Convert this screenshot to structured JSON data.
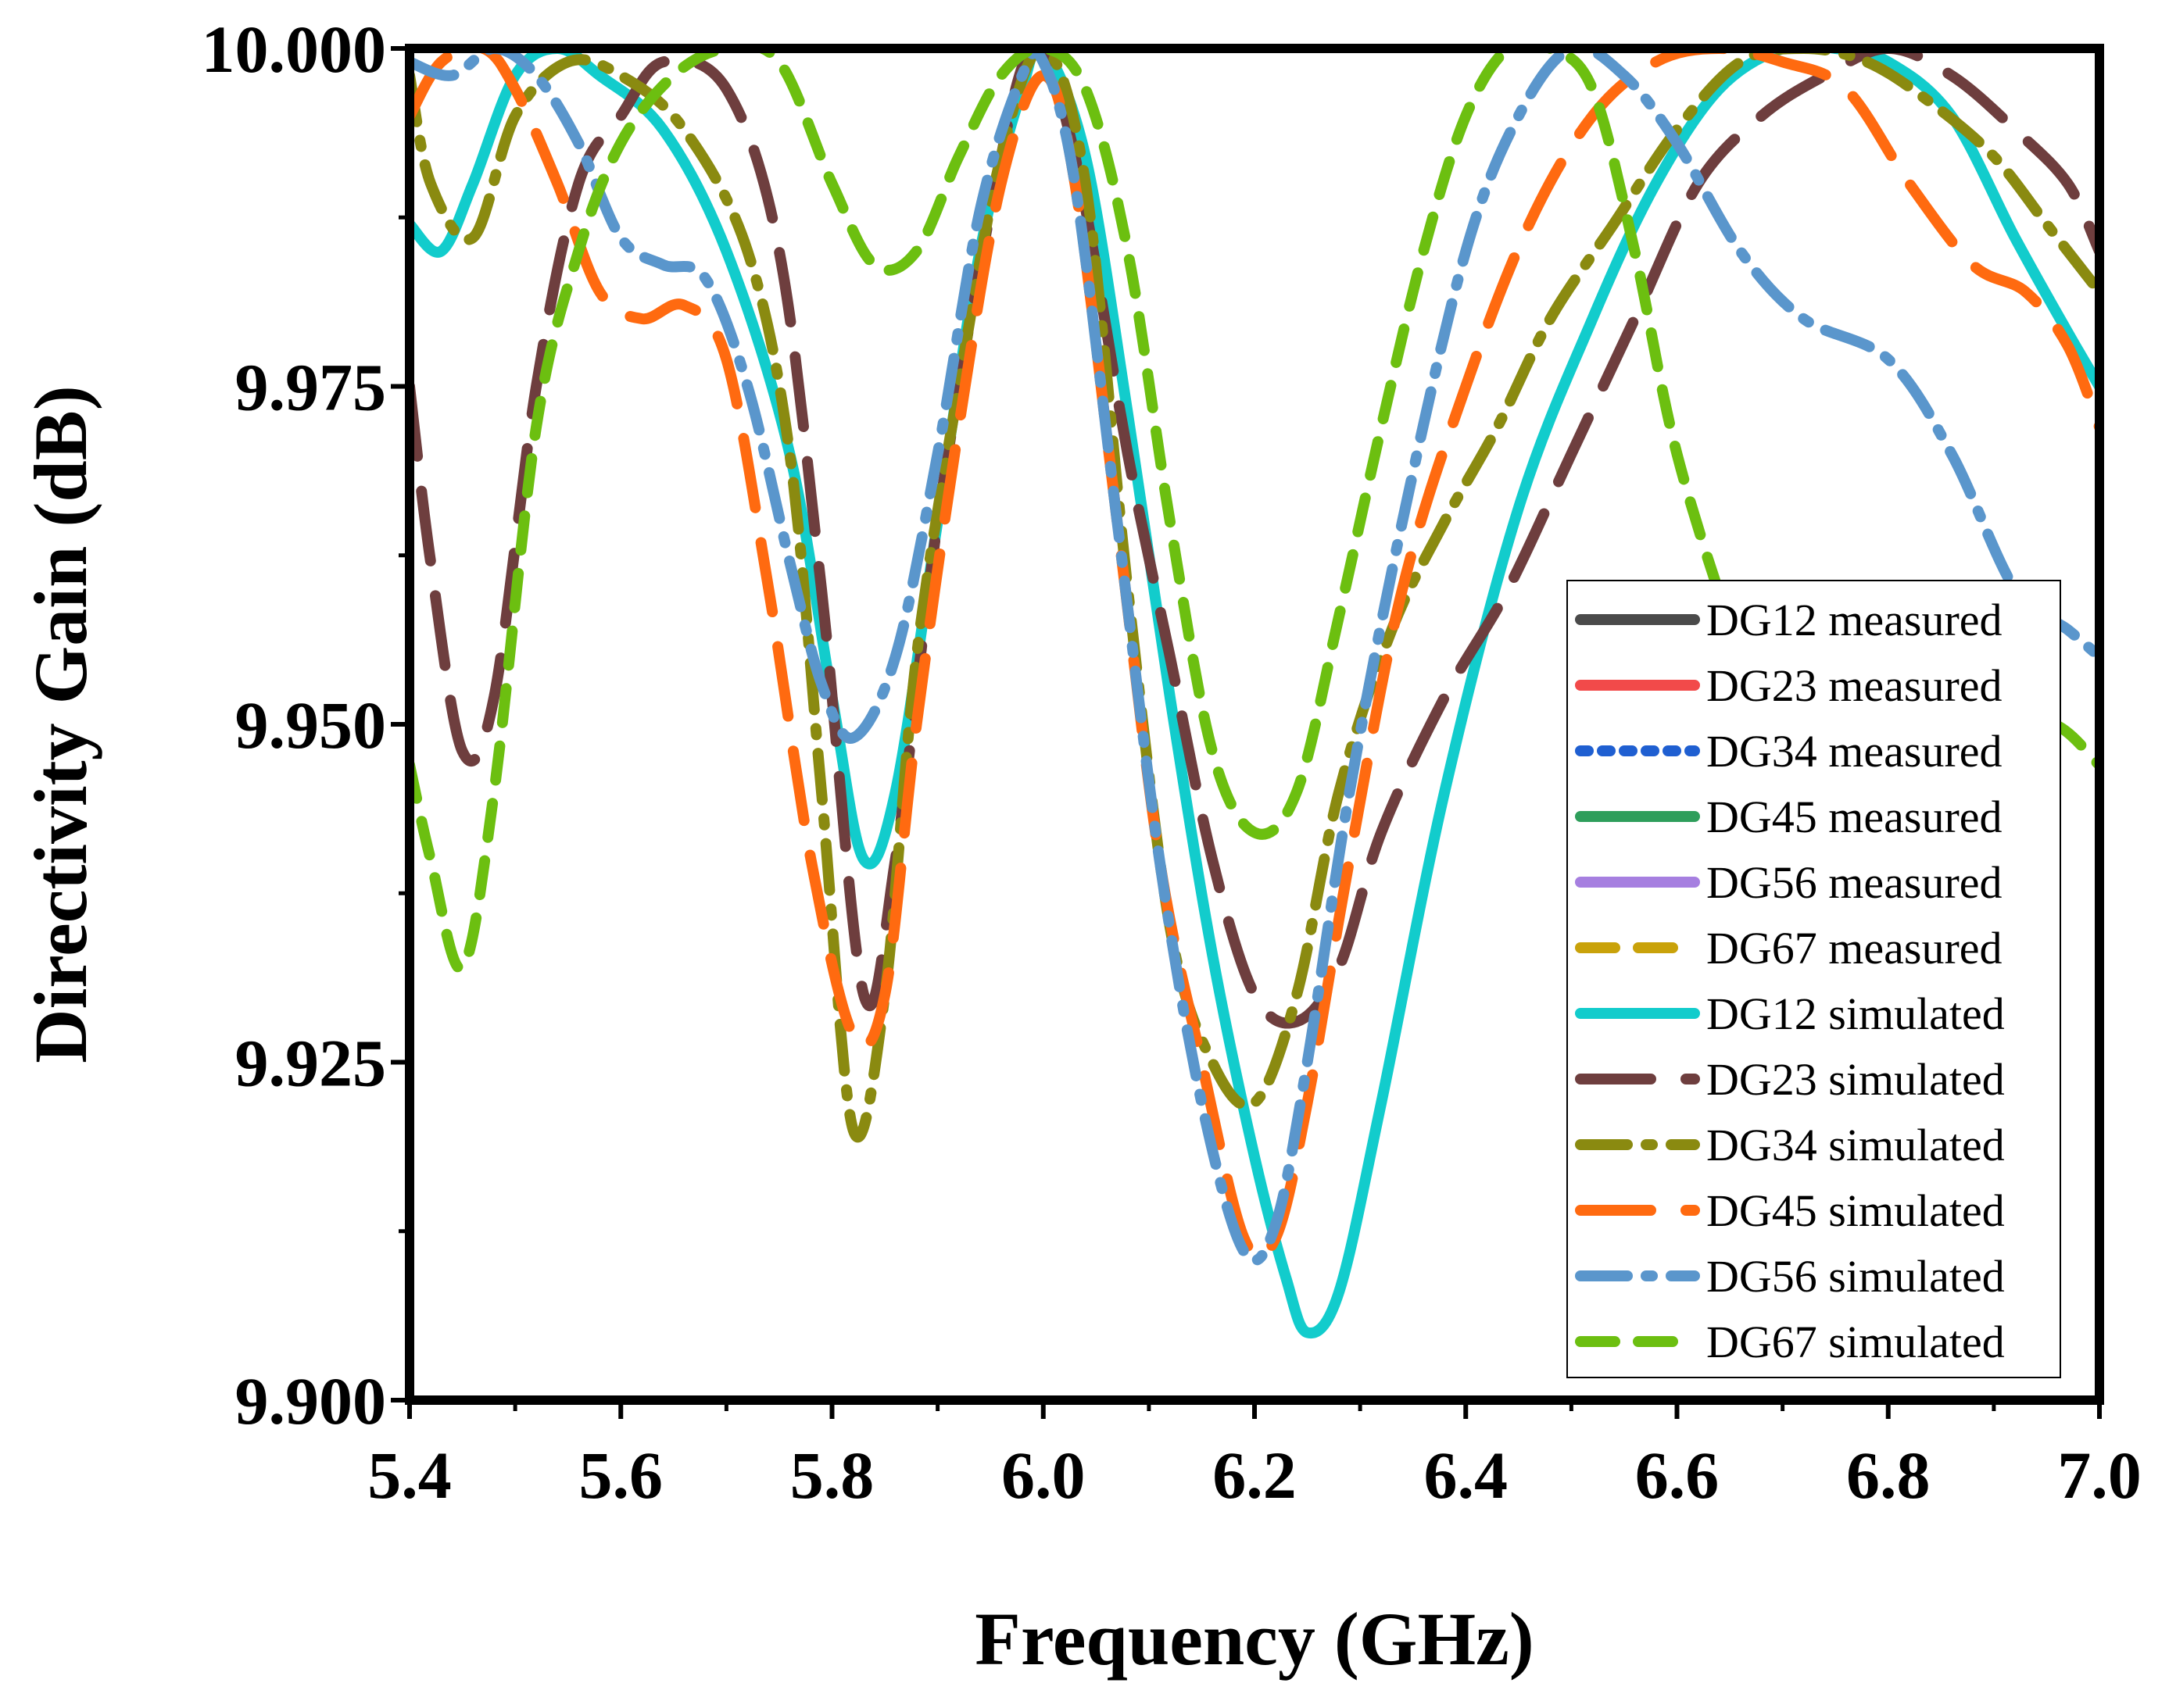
{
  "chart_data": {
    "type": "line",
    "title": "",
    "xlabel": "Frequency (GHz)",
    "ylabel": "Directivity Gain (dB)",
    "xlim": [
      5.4,
      7.0
    ],
    "ylim": [
      9.9,
      10.0
    ],
    "xticks": [
      "5.4",
      "5.6",
      "5.8",
      "6.0",
      "6.2",
      "6.4",
      "6.6",
      "6.8",
      "7.0"
    ],
    "yticks": [
      "9.900",
      "9.925",
      "9.950",
      "9.975",
      "10.000"
    ],
    "grid": false,
    "legend_position": "right",
    "series": [
      {
        "name": "DG12 measured",
        "color": "#4a4a4a",
        "dash": "solid",
        "legend_only": true,
        "x": [],
        "y": []
      },
      {
        "name": "DG23 measured",
        "color": "#f24a4a",
        "dash": "solid",
        "legend_only": true,
        "x": [],
        "y": []
      },
      {
        "name": "DG34 measured",
        "color": "#1f5fd1",
        "dash": "dot",
        "legend_only": true,
        "x": [],
        "y": []
      },
      {
        "name": "DG45 measured",
        "color": "#2e9e5b",
        "dash": "solid",
        "legend_only": true,
        "x": [],
        "y": []
      },
      {
        "name": "DG56 measured",
        "color": "#a67fe0",
        "dash": "solid",
        "legend_only": true,
        "x": [],
        "y": []
      },
      {
        "name": "DG67 measured",
        "color": "#c9a20a",
        "dash": "dash",
        "legend_only": true,
        "x": [],
        "y": []
      },
      {
        "name": "DG12 simulated",
        "color": "#12cccc",
        "dash": "solid",
        "x": [
          5.4,
          5.43,
          5.46,
          5.5,
          5.54,
          5.58,
          5.64,
          5.7,
          5.76,
          5.8,
          5.83,
          5.86,
          5.9,
          5.94,
          5.98,
          6.0,
          6.04,
          6.08,
          6.12,
          6.16,
          6.2,
          6.23,
          6.25,
          6.28,
          6.32,
          6.38,
          6.45,
          6.52,
          6.58,
          6.64,
          6.7,
          6.75,
          6.8,
          6.86,
          6.92,
          6.97,
          7.0
        ],
        "y": [
          9.987,
          9.985,
          9.99,
          9.998,
          10.0,
          9.998,
          9.994,
          9.985,
          9.97,
          9.952,
          9.94,
          9.945,
          9.965,
          9.985,
          9.997,
          10.0,
          9.992,
          9.973,
          9.952,
          9.933,
          9.918,
          9.909,
          9.905,
          9.908,
          9.922,
          9.945,
          9.966,
          9.98,
          9.99,
          9.997,
          10.0,
          10.0,
          9.999,
          9.995,
          9.986,
          9.979,
          9.975
        ]
      },
      {
        "name": "DG23 simulated",
        "color": "#6e3e3e",
        "dash": "longdash",
        "x": [
          5.4,
          5.42,
          5.45,
          5.48,
          5.52,
          5.56,
          5.6,
          5.64,
          5.7,
          5.75,
          5.79,
          5.83,
          5.86,
          5.9,
          5.95,
          5.99,
          6.03,
          6.08,
          6.12,
          6.16,
          6.2,
          6.24,
          6.28,
          6.32,
          6.38,
          6.44,
          6.5,
          6.56,
          6.62,
          6.68,
          6.74,
          6.8,
          6.86,
          6.92,
          6.97,
          7.0
        ],
        "y": [
          9.975,
          9.962,
          9.948,
          9.952,
          9.975,
          9.99,
          9.995,
          9.999,
          9.997,
          9.985,
          9.96,
          9.93,
          9.94,
          9.965,
          9.988,
          10.0,
          9.992,
          9.97,
          9.955,
          9.94,
          9.93,
          9.928,
          9.932,
          9.942,
          9.952,
          9.96,
          9.97,
          9.98,
          9.99,
          9.995,
          9.998,
          10.0,
          9.998,
          9.994,
          9.99,
          9.985
        ]
      },
      {
        "name": "DG34 simulated",
        "color": "#8a8a10",
        "dash": "dashdot",
        "x": [
          5.4,
          5.42,
          5.46,
          5.5,
          5.55,
          5.6,
          5.66,
          5.72,
          5.76,
          5.79,
          5.82,
          5.85,
          5.88,
          5.92,
          5.96,
          6.0,
          6.04,
          6.08,
          6.12,
          6.16,
          6.2,
          6.24,
          6.28,
          6.33,
          6.38,
          6.43,
          6.48,
          6.54,
          6.6,
          6.66,
          6.72,
          6.78,
          6.84,
          6.9,
          6.95,
          7.0
        ],
        "y": [
          9.998,
          9.99,
          9.986,
          9.995,
          9.999,
          9.998,
          9.994,
          9.985,
          9.97,
          9.945,
          9.92,
          9.93,
          9.955,
          9.975,
          9.992,
          10.0,
          9.99,
          9.96,
          9.935,
          9.925,
          9.922,
          9.93,
          9.945,
          9.957,
          9.965,
          9.972,
          9.98,
          9.987,
          9.994,
          9.999,
          10.0,
          9.999,
          9.996,
          9.992,
          9.987,
          9.982
        ]
      },
      {
        "name": "DG45 simulated",
        "color": "#ff6a10",
        "dash": "longdash",
        "x": [
          5.4,
          5.43,
          5.47,
          5.5,
          5.54,
          5.58,
          5.62,
          5.66,
          5.7,
          5.74,
          5.78,
          5.82,
          5.85,
          5.88,
          5.92,
          5.96,
          6.0,
          6.03,
          6.07,
          6.11,
          6.15,
          6.19,
          6.22,
          6.25,
          6.29,
          6.34,
          6.4,
          6.46,
          6.52,
          6.58,
          6.64,
          6.7,
          6.76,
          6.82,
          6.88,
          6.93,
          6.97,
          7.0
        ],
        "y": [
          9.995,
          9.999,
          10.0,
          9.997,
          9.99,
          9.982,
          9.98,
          9.981,
          9.977,
          9.96,
          9.94,
          9.927,
          9.93,
          9.95,
          9.972,
          9.99,
          9.998,
          9.99,
          9.965,
          9.94,
          9.925,
          9.912,
          9.912,
          9.922,
          9.94,
          9.96,
          9.975,
          9.987,
          9.995,
          9.999,
          10.0,
          9.999,
          9.997,
          9.99,
          9.984,
          9.982,
          9.978,
          9.972
        ]
      },
      {
        "name": "DG56 simulated",
        "color": "#5a96cc",
        "dash": "dashdot",
        "x": [
          5.4,
          5.44,
          5.48,
          5.52,
          5.56,
          5.6,
          5.64,
          5.68,
          5.72,
          5.76,
          5.79,
          5.82,
          5.86,
          5.9,
          5.94,
          5.98,
          6.0,
          6.03,
          6.07,
          6.11,
          6.15,
          6.19,
          6.22,
          6.25,
          6.29,
          6.34,
          6.4,
          6.45,
          6.5,
          6.55,
          6.6,
          6.66,
          6.72,
          6.8,
          6.86,
          6.92,
          6.97,
          7.0
        ],
        "y": [
          9.999,
          9.998,
          10.0,
          9.998,
          9.993,
          9.986,
          9.984,
          9.983,
          9.975,
          9.962,
          9.953,
          9.949,
          9.955,
          9.97,
          9.988,
          9.998,
          9.999,
          9.99,
          9.965,
          9.94,
          9.922,
          9.911,
          9.913,
          9.925,
          9.945,
          9.965,
          9.985,
          9.995,
          10.0,
          9.998,
          9.993,
          9.985,
          9.98,
          9.977,
          9.97,
          9.96,
          9.957,
          9.955
        ]
      },
      {
        "name": "DG67 simulated",
        "color": "#6cbf10",
        "dash": "dash",
        "x": [
          5.4,
          5.42,
          5.45,
          5.48,
          5.52,
          5.56,
          5.6,
          5.65,
          5.7,
          5.75,
          5.8,
          5.84,
          5.88,
          5.92,
          5.96,
          6.0,
          6.04,
          6.08,
          6.12,
          6.16,
          6.2,
          6.24,
          6.28,
          6.32,
          6.36,
          6.4,
          6.44,
          6.48,
          6.52,
          6.56,
          6.6,
          6.66,
          6.72,
          6.78,
          6.84,
          6.9,
          6.95,
          7.0
        ],
        "y": [
          9.947,
          9.94,
          9.932,
          9.945,
          9.972,
          9.985,
          9.993,
          9.998,
          10.0,
          9.999,
          9.99,
          9.984,
          9.985,
          9.992,
          9.998,
          10.0,
          9.997,
          9.985,
          9.965,
          9.948,
          9.942,
          9.945,
          9.958,
          9.972,
          9.985,
          9.995,
          10.0,
          10.0,
          9.997,
          9.985,
          9.97,
          9.955,
          9.942,
          9.938,
          9.94,
          9.945,
          9.95,
          9.947
        ]
      }
    ]
  }
}
